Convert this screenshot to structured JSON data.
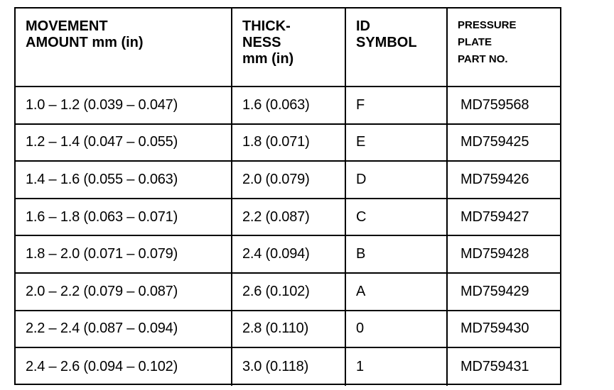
{
  "table": {
    "header": [
      [
        "MOVEMENT",
        "AMOUNT mm (in)"
      ],
      [
        "THICK-",
        "NESS",
        "mm (in)"
      ],
      [
        "ID",
        "SYMBOL"
      ],
      [
        "PRESSURE",
        "PLATE",
        "PART NO."
      ]
    ],
    "rows": [
      [
        "1.0 – 1.2 (0.039 – 0.047)",
        "1.6 (0.063)",
        "F",
        "MD759568"
      ],
      [
        "1.2 – 1.4 (0.047 – 0.055)",
        "1.8 (0.071)",
        "E",
        "MD759425"
      ],
      [
        "1.4 – 1.6 (0.055 – 0.063)",
        "2.0 (0.079)",
        "D",
        "MD759426"
      ],
      [
        "1.6 – 1.8 (0.063 – 0.071)",
        "2.2 (0.087)",
        "C",
        "MD759427"
      ],
      [
        "1.8 – 2.0 (0.071 – 0.079)",
        "2.4 (0.094)",
        "B",
        "MD759428"
      ],
      [
        "2.0 – 2.2 (0.079 – 0.087)",
        "2.6 (0.102)",
        "A",
        "MD759429"
      ],
      [
        "2.2 – 2.4 (0.087 – 0.094)",
        "2.8 (0.110)",
        "0",
        "MD759430"
      ],
      [
        "2.4 – 2.6 (0.094 – 0.102)",
        "3.0 (0.118)",
        "1",
        "MD759431"
      ]
    ]
  }
}
